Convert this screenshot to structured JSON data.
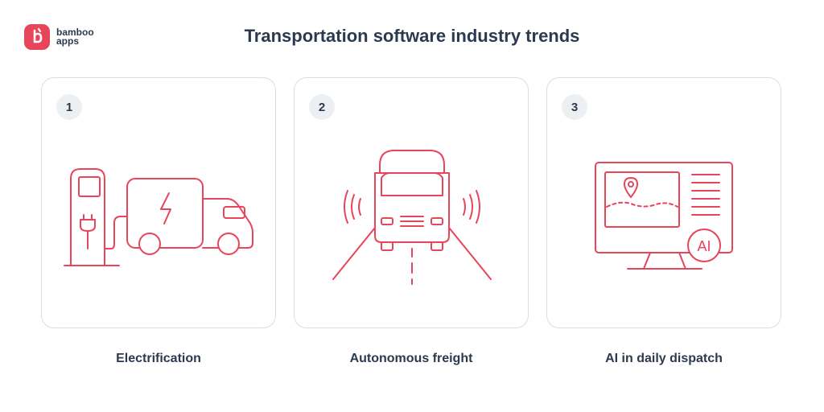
{
  "brand": {
    "name_line1": "bamboo",
    "name_line2": "apps",
    "accent": "#e8445a"
  },
  "title": "Transportation software industry trends",
  "colors": {
    "text": "#2b3a4e",
    "line": "#e8445a",
    "card_border": "#d9dde3",
    "badge_bg": "#edf0f3"
  },
  "cards": [
    {
      "number": "1",
      "label": "Electrification",
      "icon": "electric-truck-charger-icon"
    },
    {
      "number": "2",
      "label": "Autonomous freight",
      "icon": "autonomous-truck-icon"
    },
    {
      "number": "3",
      "label": "AI in daily dispatch",
      "icon": "ai-dispatch-monitor-icon",
      "icon_text": "AI"
    }
  ]
}
